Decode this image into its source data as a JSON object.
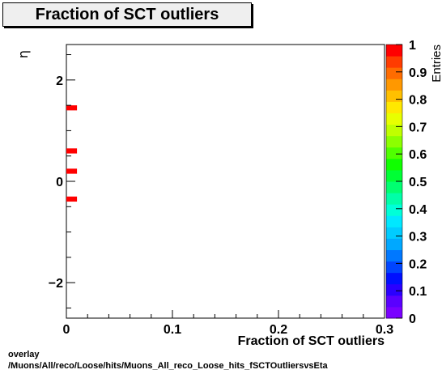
{
  "title": "Fraction of SCT outliers",
  "footer": {
    "line1": "overlay",
    "line2": "/Muons/All/reco/Loose/hits/Muons_All_reco_Loose_hits_fSCTOutliersvsEta"
  },
  "chart_data": {
    "type": "heatmap",
    "title": "Fraction of SCT outliers",
    "xlabel": "Fraction of SCT outliers",
    "ylabel": "η",
    "zlabel": "Entries",
    "xlim": [
      0,
      0.3
    ],
    "ylim": [
      -2.7,
      2.7
    ],
    "zlim": [
      0,
      1
    ],
    "x_ticks": [
      "0",
      "0.1",
      "0.2",
      "0.3"
    ],
    "y_ticks": [
      "−2",
      "0",
      "2"
    ],
    "z_ticks": [
      "0",
      "0.1",
      "0.2",
      "0.3",
      "0.4",
      "0.5",
      "0.6",
      "0.7",
      "0.8",
      "0.9",
      "1"
    ],
    "grid": false,
    "cells": [
      {
        "x0": 0.0,
        "x1": 0.01,
        "y0": 1.4,
        "y1": 1.5,
        "value": 1
      },
      {
        "x0": 0.0,
        "x1": 0.01,
        "y0": 0.55,
        "y1": 0.65,
        "value": 1
      },
      {
        "x0": 0.0,
        "x1": 0.01,
        "y0": 0.15,
        "y1": 0.25,
        "value": 1
      },
      {
        "x0": 0.0,
        "x1": 0.01,
        "y0": -0.4,
        "y1": -0.3,
        "value": 1
      }
    ],
    "palette": [
      "#7a00ff",
      "#5a00ff",
      "#2a00ff",
      "#0010ff",
      "#0045ff",
      "#0078ff",
      "#00a8ff",
      "#00ccff",
      "#00e8ff",
      "#00ffd8",
      "#00ffa8",
      "#00ff70",
      "#00ff35",
      "#10ff00",
      "#50ff00",
      "#8cff00",
      "#c0ff00",
      "#e8ff00",
      "#ffe800",
      "#ffc000",
      "#ff9800",
      "#ff6c00",
      "#ff3c00",
      "#ff0000"
    ]
  }
}
